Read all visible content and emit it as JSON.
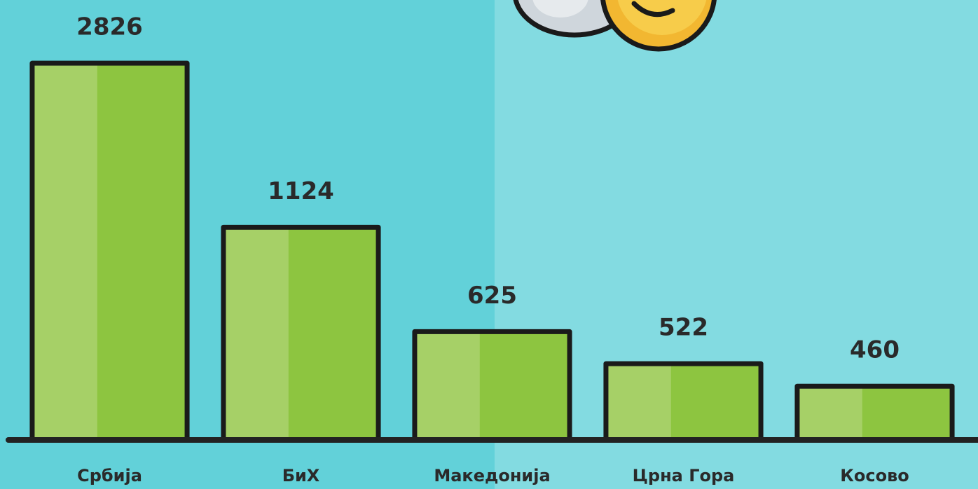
{
  "chart_data": {
    "type": "bar",
    "categories": [
      "Србија",
      "БиХ",
      "Македонија",
      "Црна Гора",
      "Косово"
    ],
    "values": [
      2826,
      1124,
      625,
      522,
      460
    ],
    "color": "#8dc540",
    "log_scale": true,
    "ylim": [
      340,
      3000
    ]
  }
}
